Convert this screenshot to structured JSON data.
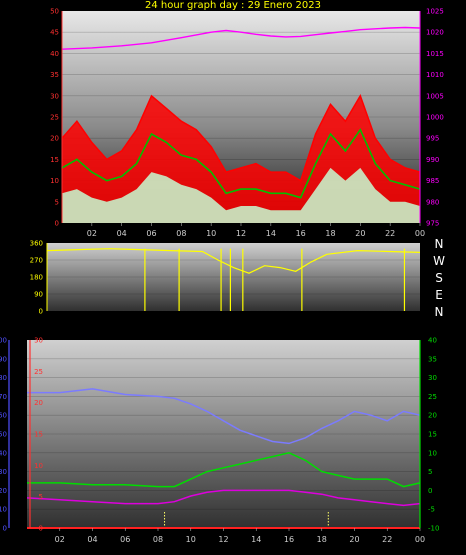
{
  "page_title": "24 hour graph day : 29 Enero 2023",
  "colors": {
    "title": "#ffff00",
    "wind_gust": "#ff0000",
    "wind_avg": "#00c000",
    "wind_min": "#c8f0c8",
    "pressure": "#ff00ff",
    "direction": "#ffff00",
    "humidity": "#7b7bff",
    "temperature": "#00dd00",
    "dewpoint": "#dd00dd",
    "rain": "#ff2020",
    "axis_blue": "#5050ff",
    "axis_red": "#ff3030",
    "axis_green": "#00dd00"
  },
  "chart_data": [
    {
      "type": "line",
      "name": "wind-pressure",
      "x_tick_labels": [
        "02",
        "04",
        "06",
        "08",
        "10",
        "12",
        "14",
        "16",
        "18",
        "20",
        "22",
        "00"
      ],
      "x_range_hours": [
        0,
        24
      ],
      "left_axis": {
        "ticks": [
          "0",
          "5",
          "10",
          "15",
          "20",
          "25",
          "30",
          "35",
          "40",
          "45",
          "50"
        ],
        "range": [
          0,
          50
        ]
      },
      "right_axis": {
        "ticks": [
          "975",
          "980",
          "985",
          "990",
          "995",
          "1000",
          "1005",
          "1010",
          "1015",
          "1020",
          "1025"
        ],
        "range": [
          975,
          1025
        ]
      },
      "series": [
        {
          "key": "gust",
          "x": [
            0,
            1,
            2,
            3,
            4,
            5,
            6,
            7,
            8,
            9,
            10,
            11,
            12,
            13,
            14,
            15,
            16,
            17,
            18,
            19,
            20,
            21,
            22,
            23,
            24
          ],
          "y": [
            20,
            24,
            19,
            15,
            17,
            22,
            30,
            27,
            24,
            22,
            18,
            12,
            13,
            14,
            12,
            12,
            10,
            21,
            28,
            24,
            30,
            20,
            15,
            13,
            12
          ]
        },
        {
          "key": "avg",
          "x": [
            0,
            1,
            2,
            3,
            4,
            5,
            6,
            7,
            8,
            9,
            10,
            11,
            12,
            13,
            14,
            15,
            16,
            17,
            18,
            19,
            20,
            21,
            22,
            23,
            24
          ],
          "y": [
            13,
            15,
            12,
            10,
            11,
            14,
            21,
            19,
            16,
            15,
            12,
            7,
            8,
            8,
            7,
            7,
            6,
            14,
            21,
            17,
            22,
            14,
            10,
            9,
            8
          ]
        },
        {
          "key": "min",
          "x": [
            0,
            1,
            2,
            3,
            4,
            5,
            6,
            7,
            8,
            9,
            10,
            11,
            12,
            13,
            14,
            15,
            16,
            17,
            18,
            19,
            20,
            21,
            22,
            23,
            24
          ],
          "y": [
            7,
            8,
            6,
            5,
            6,
            8,
            12,
            11,
            9,
            8,
            6,
            3,
            4,
            4,
            3,
            3,
            3,
            8,
            13,
            10,
            13,
            8,
            5,
            5,
            4
          ]
        },
        {
          "key": "pressure",
          "x": [
            0,
            2,
            4,
            6,
            8,
            10,
            11,
            12,
            13,
            14,
            15,
            16,
            17,
            18,
            19,
            20,
            21,
            22,
            23,
            24
          ],
          "y": [
            1016,
            1016.3,
            1016.8,
            1017.5,
            1018.7,
            1020,
            1020.4,
            1020,
            1019.5,
            1019.1,
            1018.9,
            1019.0,
            1019.4,
            1019.8,
            1020.2,
            1020.6,
            1020.8,
            1021,
            1021.1,
            1021
          ]
        }
      ]
    },
    {
      "type": "line",
      "name": "wind-direction",
      "x_range_hours": [
        0,
        24
      ],
      "left_axis": {
        "ticks": [
          "0",
          "90",
          "180",
          "270",
          "360"
        ],
        "range": [
          0,
          360
        ]
      },
      "compass_labels": [
        "N",
        "W",
        "S",
        "E",
        "N"
      ],
      "series": [
        {
          "key": "direction",
          "x": [
            0,
            2,
            4,
            6,
            8,
            10,
            11,
            12,
            13,
            14,
            15,
            16,
            17,
            18,
            20,
            22,
            24
          ],
          "y": [
            320,
            325,
            330,
            325,
            320,
            315,
            270,
            230,
            200,
            240,
            230,
            210,
            260,
            300,
            320,
            315,
            310
          ]
        }
      ]
    },
    {
      "type": "line",
      "name": "temp-humidity-rain",
      "x_tick_labels": [
        "02",
        "04",
        "06",
        "08",
        "10",
        "12",
        "14",
        "16",
        "18",
        "20",
        "22",
        "00"
      ],
      "x_range_hours": [
        0,
        24
      ],
      "humidity_axis": {
        "ticks": [
          "0",
          "10",
          "20",
          "30",
          "40",
          "50",
          "60",
          "70",
          "80",
          "90",
          "100"
        ],
        "range": [
          0,
          100
        ]
      },
      "rain_axis": {
        "ticks": [
          "0",
          "5",
          "10",
          "15",
          "20",
          "25",
          "30"
        ],
        "range": [
          0,
          30
        ]
      },
      "temp_axis": {
        "ticks": [
          "-10",
          "-5",
          "0",
          "5",
          "10",
          "15",
          "20",
          "25",
          "30",
          "35",
          "40"
        ],
        "range": [
          -10,
          40
        ]
      },
      "series": [
        {
          "key": "humidity",
          "x": [
            0,
            2,
            3,
            4,
            6,
            8,
            9,
            10,
            11,
            12,
            13,
            14,
            15,
            16,
            17,
            18,
            19,
            20,
            21,
            22,
            23,
            24
          ],
          "y": [
            72,
            72,
            73,
            74,
            71,
            70,
            69,
            66,
            62,
            57,
            52,
            49,
            46,
            45,
            48,
            53,
            57,
            62,
            60,
            57,
            62,
            60
          ]
        },
        {
          "key": "temperature",
          "x": [
            0,
            2,
            4,
            6,
            8,
            9,
            10,
            11,
            12,
            13,
            14,
            15,
            16,
            17,
            18,
            19,
            20,
            21,
            22,
            23,
            24
          ],
          "y": [
            2,
            2,
            1.5,
            1.5,
            1,
            1,
            3,
            5,
            6,
            7,
            8,
            9,
            10,
            8,
            5,
            4,
            3,
            3,
            3,
            1,
            2
          ]
        },
        {
          "key": "dewpoint",
          "x": [
            0,
            2,
            4,
            6,
            8,
            9,
            10,
            11,
            12,
            13,
            14,
            15,
            16,
            17,
            18,
            19,
            20,
            21,
            22,
            23,
            24
          ],
          "y": [
            -2,
            -2.5,
            -3,
            -3.5,
            -3.5,
            -3,
            -1.5,
            -0.5,
            0,
            0,
            0,
            0,
            0,
            -0.5,
            -1,
            -2,
            -2.5,
            -3,
            -3.5,
            -4,
            -3.5
          ]
        },
        {
          "key": "rain",
          "x": [
            0,
            24
          ],
          "y": [
            0,
            0
          ]
        }
      ]
    }
  ]
}
